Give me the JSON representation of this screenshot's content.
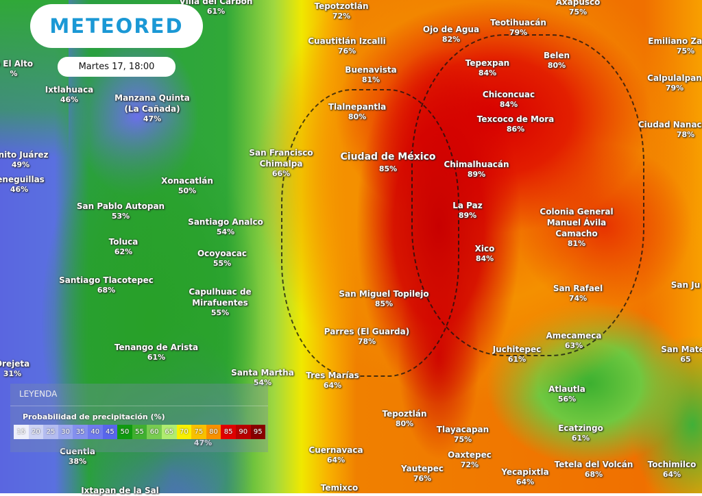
{
  "brand": {
    "logo": "METEORED",
    "logo_color": "#1b98d5"
  },
  "date_label": "Martes 17, 18:00",
  "legend": {
    "title": "LEYENDA",
    "subtitle": "Probabilidad de precipitación (%)",
    "scale": [
      {
        "v": "15",
        "c": "#eef0fa"
      },
      {
        "v": "20",
        "c": "#cfd4f4"
      },
      {
        "v": "25",
        "c": "#b4bcf0"
      },
      {
        "v": "30",
        "c": "#9aa6ee"
      },
      {
        "v": "35",
        "c": "#8490ee"
      },
      {
        "v": "40",
        "c": "#6e7aee"
      },
      {
        "v": "45",
        "c": "#5866ec"
      },
      {
        "v": "50",
        "c": "#109a10"
      },
      {
        "v": "55",
        "c": "#40b030"
      },
      {
        "v": "60",
        "c": "#78cc50"
      },
      {
        "v": "65",
        "c": "#b0ec70"
      },
      {
        "v": "70",
        "c": "#f8f000"
      },
      {
        "v": "75",
        "c": "#f8c000"
      },
      {
        "v": "80",
        "c": "#f89000"
      },
      {
        "v": "85",
        "c": "#e00000"
      },
      {
        "v": "90",
        "c": "#b80000"
      },
      {
        "v": "95",
        "c": "#880000"
      }
    ]
  },
  "cities": [
    {
      "name": "Villa del Carbón",
      "pct": "61%"
    },
    {
      "name": "Tepotzotlán",
      "pct": "72%"
    },
    {
      "name": "Axapusco",
      "pct": "75%"
    },
    {
      "name": "Ojo de Agua",
      "pct": "82%"
    },
    {
      "name": "Teotihuacán",
      "pct": "79%"
    },
    {
      "name": "Emiliano Zapata",
      "pct": "75%"
    },
    {
      "name": "Cuautitlán Izcalli",
      "pct": "76%"
    },
    {
      "name": "Belen",
      "pct": "80%"
    },
    {
      "name": "Tepexpan",
      "pct": "84%"
    },
    {
      "name": "Calpulalpan",
      "pct": "79%"
    },
    {
      "name": "Buenavista",
      "pct": "81%"
    },
    {
      "name": "o El Alto",
      "pct": "%"
    },
    {
      "name": "Ixtlahuaca",
      "pct": "46%"
    },
    {
      "name": "Manzana Quinta (La Cañada)",
      "pct": "47%"
    },
    {
      "name": "Chiconcuac",
      "pct": "84%"
    },
    {
      "name": "Tlalnepantla",
      "pct": "80%"
    },
    {
      "name": "Texcoco de Mora",
      "pct": "86%"
    },
    {
      "name": "Ciudad Nanacamilpa",
      "pct": "78%"
    },
    {
      "name": "enito Juárez",
      "pct": "49%"
    },
    {
      "name": "San Francisco Chimalpa",
      "pct": "66%"
    },
    {
      "name": "Ciudad de México",
      "pct": "85%"
    },
    {
      "name": "Chimalhuacán",
      "pct": "89%"
    },
    {
      "name": "ieneguillas",
      "pct": "46%"
    },
    {
      "name": "Xonacatlán",
      "pct": "50%"
    },
    {
      "name": "San Pablo Autopan",
      "pct": "53%"
    },
    {
      "name": "La Paz",
      "pct": "89%"
    },
    {
      "name": "Colonia General Manuel Ávila Camacho",
      "pct": "81%"
    },
    {
      "name": "Santiago Analco",
      "pct": "54%"
    },
    {
      "name": "Toluca",
      "pct": "62%"
    },
    {
      "name": "Ocoyoacac",
      "pct": "55%"
    },
    {
      "name": "Xico",
      "pct": "84%"
    },
    {
      "name": "Santiago Tlacotepec",
      "pct": "68%"
    },
    {
      "name": "San Ju",
      "pct": ""
    },
    {
      "name": "San Rafael",
      "pct": "74%"
    },
    {
      "name": "Capulhuac de Mirafuentes",
      "pct": "55%"
    },
    {
      "name": "San Miguel Topilejo",
      "pct": "85%"
    },
    {
      "name": "Parres (El Guarda)",
      "pct": "78%"
    },
    {
      "name": "Amecameca",
      "pct": "63%"
    },
    {
      "name": "Tenango de Arista",
      "pct": "61%"
    },
    {
      "name": "Juchitepec",
      "pct": "61%"
    },
    {
      "name": "San Mateo",
      "pct": "65"
    },
    {
      "name": "Orejeta",
      "pct": "31%"
    },
    {
      "name": "Santa Martha",
      "pct": "54%"
    },
    {
      "name": "Tres Marías",
      "pct": "64%"
    },
    {
      "name": "Atlautla",
      "pct": "56%"
    },
    {
      "name": "Tepoztlán",
      "pct": "80%"
    },
    {
      "name": "Tlayacapan",
      "pct": "75%"
    },
    {
      "name": "Ecatzingo",
      "pct": "61%"
    },
    {
      "name": "",
      "pct": "47%"
    },
    {
      "name": "Cuentla",
      "pct": "38%"
    },
    {
      "name": "Cuernavaca",
      "pct": "64%"
    },
    {
      "name": "Oaxtepec",
      "pct": "72%"
    },
    {
      "name": "Tetela del Volcán",
      "pct": "68%"
    },
    {
      "name": "Tochimilco",
      "pct": "64%"
    },
    {
      "name": "Yautepec",
      "pct": "76%"
    },
    {
      "name": "Yecapixtla",
      "pct": "64%"
    },
    {
      "name": "Ixtapan de la Sal",
      "pct": ""
    },
    {
      "name": "Temixco",
      "pct": ""
    }
  ]
}
